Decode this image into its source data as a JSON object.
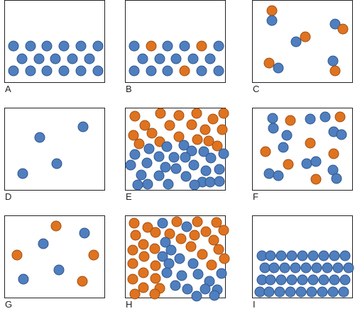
{
  "colors": {
    "blue": "#4f7fbf",
    "blue_edge": "#30568c",
    "orange": "#df7320",
    "orange_edge": "#a24f12",
    "border": "#222222"
  },
  "panels": [
    {
      "id": "A",
      "label": "A",
      "particles": [
        [
          "b",
          12,
          64
        ],
        [
          "b",
          36,
          64
        ],
        [
          "b",
          59,
          64
        ],
        [
          "b",
          83,
          64
        ],
        [
          "b",
          107,
          64
        ],
        [
          "b",
          131,
          64
        ],
        [
          "b",
          24,
          82
        ],
        [
          "b",
          48,
          82
        ],
        [
          "b",
          71,
          82
        ],
        [
          "b",
          95,
          82
        ],
        [
          "b",
          119,
          82
        ],
        [
          "b",
          12,
          99
        ],
        [
          "b",
          36,
          99
        ],
        [
          "b",
          59,
          99
        ],
        [
          "b",
          83,
          99
        ],
        [
          "b",
          107,
          99
        ],
        [
          "b",
          131,
          99
        ]
      ]
    },
    {
      "id": "B",
      "label": "B",
      "particles": [
        [
          "b",
          12,
          64
        ],
        [
          "o",
          36,
          64
        ],
        [
          "b",
          59,
          64
        ],
        [
          "b",
          83,
          64
        ],
        [
          "o",
          107,
          64
        ],
        [
          "b",
          131,
          64
        ],
        [
          "b",
          24,
          82
        ],
        [
          "b",
          48,
          82
        ],
        [
          "b",
          71,
          82
        ],
        [
          "b",
          95,
          82
        ],
        [
          "b",
          119,
          82
        ],
        [
          "b",
          12,
          99
        ],
        [
          "b",
          36,
          99
        ],
        [
          "b",
          59,
          99
        ],
        [
          "o",
          83,
          99
        ],
        [
          "b",
          107,
          99
        ],
        [
          "b",
          131,
          99
        ]
      ]
    },
    {
      "id": "C",
      "label": "C",
      "particles": [
        [
          "o",
          27,
          14
        ],
        [
          "b",
          27,
          28
        ],
        [
          "o",
          74,
          51
        ],
        [
          "b",
          61,
          58
        ],
        [
          "b",
          116,
          33
        ],
        [
          "o",
          127,
          40
        ],
        [
          "o",
          23,
          88
        ],
        [
          "b",
          36,
          95
        ],
        [
          "b",
          113,
          85
        ],
        [
          "o",
          116,
          99
        ]
      ]
    },
    {
      "id": "D",
      "label": "D",
      "particles": [
        [
          "b",
          49,
          41
        ],
        [
          "b",
          110,
          26
        ],
        [
          "b",
          73,
          78
        ],
        [
          "b",
          25,
          92
        ]
      ]
    },
    {
      "id": "E",
      "label": "E",
      "particles": [
        [
          "o",
          13,
          11
        ],
        [
          "o",
          49,
          7
        ],
        [
          "o",
          75,
          10
        ],
        [
          "o",
          100,
          7
        ],
        [
          "o",
          123,
          15
        ],
        [
          "o",
          138,
          7
        ],
        [
          "o",
          27,
          24
        ],
        [
          "o",
          62,
          24
        ],
        [
          "o",
          93,
          23
        ],
        [
          "o",
          112,
          30
        ],
        [
          "o",
          11,
          38
        ],
        [
          "o",
          37,
          35
        ],
        [
          "o",
          48,
          47
        ],
        [
          "o",
          75,
          40
        ],
        [
          "o",
          117,
          46
        ],
        [
          "o",
          136,
          30
        ],
        [
          "o",
          19,
          50
        ],
        [
          "o",
          101,
          44
        ],
        [
          "o",
          129,
          53
        ],
        [
          "b",
          33,
          57
        ],
        [
          "b",
          58,
          54
        ],
        [
          "b",
          82,
          52
        ],
        [
          "b",
          93,
          60
        ],
        [
          "b",
          110,
          61
        ],
        [
          "b",
          13,
          65
        ],
        [
          "b",
          47,
          68
        ],
        [
          "b",
          68,
          69
        ],
        [
          "b",
          84,
          69
        ],
        [
          "b",
          120,
          70
        ],
        [
          "b",
          138,
          64
        ],
        [
          "b",
          7,
          80
        ],
        [
          "b",
          30,
          77
        ],
        [
          "b",
          56,
          83
        ],
        [
          "b",
          71,
          85
        ],
        [
          "b",
          96,
          80
        ],
        [
          "b",
          113,
          88
        ],
        [
          "b",
          132,
          86
        ],
        [
          "b",
          22,
          94
        ],
        [
          "b",
          47,
          95
        ],
        [
          "b",
          85,
          96
        ],
        [
          "b",
          108,
          104
        ],
        [
          "b",
          119,
          104
        ],
        [
          "b",
          17,
          108
        ],
        [
          "b",
          31,
          107
        ],
        [
          "b",
          60,
          107
        ],
        [
          "b",
          97,
          108
        ],
        [
          "b",
          132,
          103
        ]
      ]
    },
    {
      "id": "F",
      "label": "F",
      "particles": [
        [
          "b",
          28,
          14
        ],
        [
          "b",
          29,
          28
        ],
        [
          "o",
          53,
          17
        ],
        [
          "b",
          81,
          15
        ],
        [
          "b",
          102,
          12
        ],
        [
          "o",
          123,
          12
        ],
        [
          "b",
          48,
          38
        ],
        [
          "b",
          114,
          33
        ],
        [
          "b",
          125,
          37
        ],
        [
          "o",
          18,
          61
        ],
        [
          "b",
          43,
          55
        ],
        [
          "o",
          81,
          49
        ],
        [
          "o",
          114,
          64
        ],
        [
          "b",
          76,
          78
        ],
        [
          "b",
          89,
          75
        ],
        [
          "b",
          113,
          87
        ],
        [
          "o",
          50,
          79
        ],
        [
          "b",
          23,
          92
        ],
        [
          "b",
          36,
          95
        ],
        [
          "o",
          89,
          100
        ],
        [
          "b",
          118,
          99
        ]
      ]
    },
    {
      "id": "G",
      "label": "G",
      "particles": [
        [
          "o",
          72,
          14
        ],
        [
          "b",
          112,
          24
        ],
        [
          "b",
          54,
          39
        ],
        [
          "o",
          17,
          55
        ],
        [
          "o",
          125,
          55
        ],
        [
          "b",
          76,
          76
        ],
        [
          "b",
          26,
          89
        ],
        [
          "o",
          109,
          92
        ]
      ]
    },
    {
      "id": "H",
      "label": "H",
      "particles": [
        [
          "o",
          12,
          10
        ],
        [
          "b",
          52,
          10
        ],
        [
          "o",
          72,
          8
        ],
        [
          "b",
          86,
          15
        ],
        [
          "o",
          101,
          8
        ],
        [
          "o",
          128,
          9
        ],
        [
          "o",
          31,
          16
        ],
        [
          "o",
          14,
          27
        ],
        [
          "o",
          42,
          23
        ],
        [
          "o",
          62,
          25
        ],
        [
          "o",
          97,
          27
        ],
        [
          "o",
          113,
          22
        ],
        [
          "o",
          138,
          20
        ],
        [
          "o",
          25,
          40
        ],
        [
          "b",
          56,
          37
        ],
        [
          "o",
          78,
          32
        ],
        [
          "o",
          124,
          34
        ],
        [
          "o",
          10,
          48
        ],
        [
          "o",
          41,
          46
        ],
        [
          "b",
          64,
          48
        ],
        [
          "o",
          92,
          43
        ],
        [
          "o",
          131,
          47
        ],
        [
          "o",
          26,
          57
        ],
        [
          "b",
          52,
          57
        ],
        [
          "o",
          108,
          54
        ],
        [
          "b",
          76,
          60
        ],
        [
          "o",
          139,
          60
        ],
        [
          "o",
          10,
          67
        ],
        [
          "o",
          42,
          70
        ],
        [
          "b",
          61,
          67
        ],
        [
          "b",
          95,
          67
        ],
        [
          "o",
          121,
          69
        ],
        [
          "o",
          25,
          80
        ],
        [
          "b",
          58,
          80
        ],
        [
          "b",
          79,
          84
        ],
        [
          "b",
          102,
          82
        ],
        [
          "b",
          135,
          81
        ],
        [
          "o",
          10,
          89
        ],
        [
          "o",
          42,
          88
        ],
        [
          "b",
          118,
          92
        ],
        [
          "o",
          25,
          101
        ],
        [
          "o",
          48,
          102
        ],
        [
          "b",
          70,
          98
        ],
        [
          "b",
          87,
          103
        ],
        [
          "b",
          112,
          103
        ],
        [
          "b",
          129,
          104
        ],
        [
          "o",
          13,
          110
        ],
        [
          "o",
          41,
          110
        ],
        [
          "b",
          100,
          113
        ],
        [
          "b",
          125,
          112
        ]
      ]
    },
    {
      "id": "I",
      "label": "I",
      "particles": [
        [
          "b",
          13,
          56
        ],
        [
          "b",
          25,
          56
        ],
        [
          "b",
          40,
          56
        ],
        [
          "b",
          55,
          56
        ],
        [
          "b",
          70,
          56
        ],
        [
          "b",
          85,
          56
        ],
        [
          "b",
          100,
          56
        ],
        [
          "b",
          115,
          56
        ],
        [
          "b",
          130,
          56
        ],
        [
          "b",
          17,
          73
        ],
        [
          "b",
          30,
          73
        ],
        [
          "b",
          45,
          73
        ],
        [
          "b",
          60,
          73
        ],
        [
          "b",
          75,
          73
        ],
        [
          "b",
          90,
          73
        ],
        [
          "b",
          105,
          73
        ],
        [
          "b",
          120,
          73
        ],
        [
          "b",
          135,
          73
        ],
        [
          "b",
          13,
          90
        ],
        [
          "b",
          25,
          90
        ],
        [
          "b",
          40,
          90
        ],
        [
          "b",
          55,
          90
        ],
        [
          "b",
          70,
          90
        ],
        [
          "b",
          85,
          90
        ],
        [
          "b",
          100,
          90
        ],
        [
          "b",
          115,
          90
        ],
        [
          "b",
          130,
          90
        ],
        [
          "b",
          10,
          107
        ],
        [
          "b",
          23,
          107
        ],
        [
          "b",
          38,
          107
        ],
        [
          "b",
          53,
          107
        ],
        [
          "b",
          68,
          107
        ],
        [
          "b",
          83,
          107
        ],
        [
          "b",
          98,
          107
        ],
        [
          "b",
          113,
          107
        ],
        [
          "b",
          128,
          107
        ]
      ]
    }
  ]
}
